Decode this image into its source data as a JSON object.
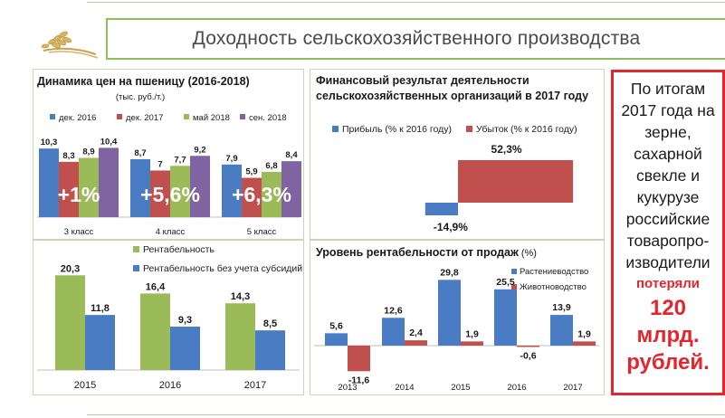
{
  "page_title": "Доходность сельскохозяйственного производства",
  "callout": {
    "text": "По итогам 2017 года на зерне, сахарной свекле и кукурузе российские товаропро-изводители",
    "red_line1": "потеряли",
    "red_line2": "120 млрд. рублей."
  },
  "colors": {
    "blue": "#4a7cc4",
    "red": "#c0504d",
    "green": "#9bbb59",
    "purple": "#8064a2",
    "accent_green": "#8fbf5a",
    "callout_red": "#e3262e"
  },
  "chart_data": [
    {
      "type": "bar",
      "title": "Динамика цен на пшеницу (2016-2018)",
      "subtitle": "(тыс. руб./т.)",
      "categories": [
        "3 класс",
        "4 класс",
        "5 класс"
      ],
      "series": [
        {
          "name": "дек. 2016",
          "color": "#4a7cc4",
          "values": [
            10.3,
            8.7,
            7.9
          ],
          "labels": [
            "10,3",
            "8,7",
            "7,9"
          ]
        },
        {
          "name": "дек. 2017",
          "color": "#c0504d",
          "values": [
            8.3,
            7,
            5.9
          ],
          "labels": [
            "8,3",
            "7",
            "5,9"
          ]
        },
        {
          "name": "май 2018",
          "color": "#9bbb59",
          "values": [
            8.9,
            7.7,
            6.8
          ],
          "labels": [
            "8,9",
            "7,7",
            "6,8"
          ]
        },
        {
          "name": "сен. 2018",
          "color": "#8064a2",
          "values": [
            10.4,
            9.2,
            8.4
          ],
          "labels": [
            "10,4",
            "9,2",
            "8,4"
          ]
        }
      ],
      "annotations": [
        "+1%",
        "+5,6%",
        "+6,3%"
      ],
      "ylim": [
        0,
        11
      ],
      "legend": "top"
    },
    {
      "type": "bar",
      "title": "Финансовый результат деятельности сельскохозяйственных организаций в 2017 году",
      "orientation": "horizontal",
      "series": [
        {
          "name": "Прибыль (% к 2016 году)",
          "color": "#4a7cc4",
          "values": [
            -14.9
          ],
          "labels": [
            "-14,9%"
          ]
        },
        {
          "name": "Убыток (% к 2016 году)",
          "color": "#c0504d",
          "values": [
            52.3
          ],
          "labels": [
            "52,3%"
          ]
        }
      ],
      "xlim": [
        -60,
        60
      ],
      "legend": "top"
    },
    {
      "type": "bar",
      "categories": [
        "2015",
        "2016",
        "2017"
      ],
      "series": [
        {
          "name": "Рентабельность",
          "color": "#9bbb59",
          "values": [
            20.3,
            16.4,
            14.3
          ],
          "labels": [
            "20,3",
            "16,4",
            "14,3"
          ]
        },
        {
          "name": "Рентабельность без учета субсидий",
          "color": "#4a7cc4",
          "values": [
            11.8,
            9.3,
            8.5
          ],
          "labels": [
            "11,8",
            "9,3",
            "8,5"
          ]
        }
      ],
      "ylim": [
        0,
        22
      ],
      "legend": "top"
    },
    {
      "type": "bar",
      "title": "Уровень рентабельности от продаж",
      "title_unit": "(%)",
      "categories": [
        "2013",
        "2014",
        "2015",
        "2016",
        "2017"
      ],
      "series": [
        {
          "name": "Растениеводство",
          "color": "#4a7cc4",
          "values": [
            5.6,
            12.6,
            29.8,
            25.5,
            13.9
          ],
          "labels": [
            "5,6",
            "12,6",
            "29,8",
            "25,5",
            "13,9"
          ]
        },
        {
          "name": "Животноводство",
          "color": "#c0504d",
          "values": [
            -11.6,
            2.4,
            1.9,
            -0.6,
            1.9
          ],
          "labels": [
            "-11,6",
            "2,4",
            "1,9",
            "-0,6",
            "1,9"
          ]
        }
      ],
      "ylim": [
        -13,
        31
      ],
      "legend": "top-right"
    }
  ]
}
